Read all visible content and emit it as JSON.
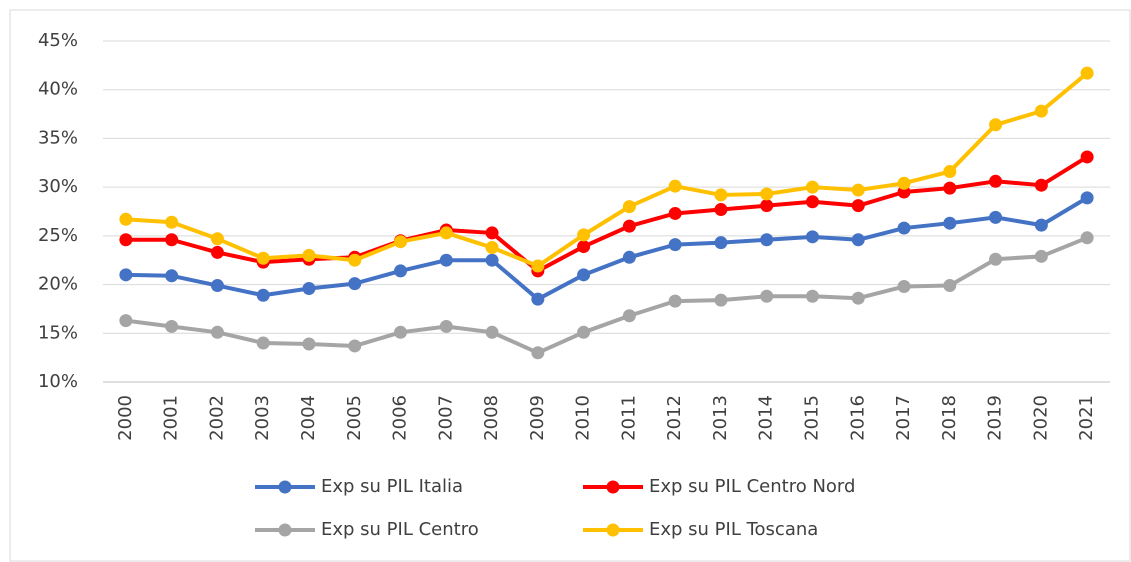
{
  "chart_data": {
    "type": "line",
    "categories": [
      "2000",
      "2001",
      "2002",
      "2003",
      "2004",
      "2005",
      "2006",
      "2007",
      "2008",
      "2009",
      "2010",
      "2011",
      "2012",
      "2013",
      "2014",
      "2015",
      "2016",
      "2017",
      "2018",
      "2019",
      "2020",
      "2021"
    ],
    "ylim": [
      10,
      45
    ],
    "yticks": [
      {
        "value": 10,
        "label": "10%"
      },
      {
        "value": 15,
        "label": "15%"
      },
      {
        "value": 20,
        "label": "20%"
      },
      {
        "value": 25,
        "label": "25%"
      },
      {
        "value": 30,
        "label": "30%"
      },
      {
        "value": 35,
        "label": "35%"
      },
      {
        "value": 40,
        "label": "40%"
      },
      {
        "value": 45,
        "label": "45%"
      }
    ],
    "grid": true,
    "legend": "bottom",
    "series": [
      {
        "name": "Exp su PIL Italia",
        "color": "#4472c4",
        "values": [
          21.0,
          20.9,
          19.9,
          18.9,
          19.6,
          20.1,
          21.4,
          22.5,
          22.5,
          18.5,
          21.0,
          22.8,
          24.1,
          24.3,
          24.6,
          24.9,
          24.6,
          25.8,
          26.3,
          26.9,
          26.1,
          28.9
        ]
      },
      {
        "name": "Exp su PIL Centro Nord",
        "color": "#ff0000",
        "values": [
          24.6,
          24.6,
          23.3,
          22.3,
          22.6,
          22.8,
          24.5,
          25.6,
          25.3,
          21.4,
          23.9,
          26.0,
          27.3,
          27.7,
          28.1,
          28.5,
          28.1,
          29.5,
          29.9,
          30.6,
          30.2,
          33.1
        ]
      },
      {
        "name": "Exp su PIL Centro",
        "color": "#a5a5a5",
        "values": [
          16.3,
          15.7,
          15.1,
          14.0,
          13.9,
          13.7,
          15.1,
          15.7,
          15.1,
          13.0,
          15.1,
          16.8,
          18.3,
          18.4,
          18.8,
          18.8,
          18.6,
          19.8,
          19.9,
          22.6,
          22.9,
          24.8
        ]
      },
      {
        "name": "Exp su PIL Toscana",
        "color": "#ffc000",
        "values": [
          26.7,
          26.4,
          24.7,
          22.7,
          23.0,
          22.5,
          24.4,
          25.3,
          23.8,
          21.9,
          25.1,
          28.0,
          30.1,
          29.2,
          29.3,
          30.0,
          29.7,
          30.4,
          31.6,
          36.4,
          37.8,
          41.7
        ]
      }
    ]
  }
}
